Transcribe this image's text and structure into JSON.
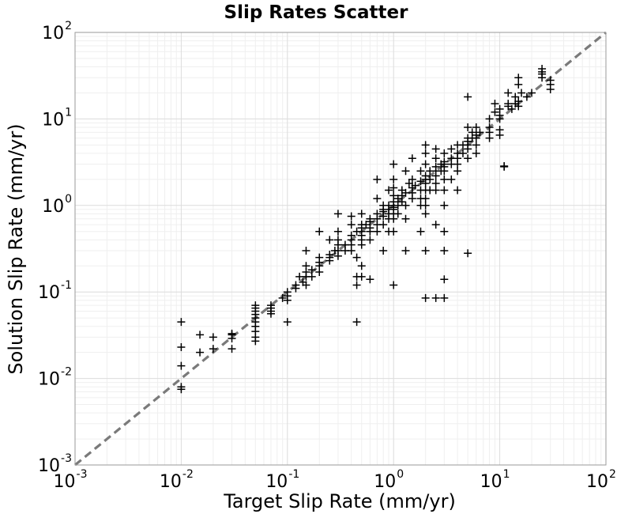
{
  "chart_data": {
    "type": "scatter",
    "title": "Slip Rates Scatter",
    "xlabel": "Target Slip Rate (mm/yr)",
    "ylabel": "Solution Slip Rate (mm/yr)",
    "xscale": "log",
    "yscale": "log",
    "xlim": [
      0.001,
      100
    ],
    "ylim": [
      0.001,
      100
    ],
    "x_ticks": [
      {
        "base": "10",
        "exp": "-3"
      },
      {
        "base": "10",
        "exp": "-2"
      },
      {
        "base": "10",
        "exp": "-1"
      },
      {
        "base": "10",
        "exp": "0"
      },
      {
        "base": "10",
        "exp": "1"
      },
      {
        "base": "10",
        "exp": "2"
      }
    ],
    "y_ticks": [
      {
        "base": "10",
        "exp": "-3"
      },
      {
        "base": "10",
        "exp": "-2"
      },
      {
        "base": "10",
        "exp": "-1"
      },
      {
        "base": "10",
        "exp": "0"
      },
      {
        "base": "10",
        "exp": "1"
      },
      {
        "base": "10",
        "exp": "2"
      }
    ],
    "grid": true,
    "marker": "+",
    "marker_color": "#000000",
    "reference_line": {
      "style": "dashed",
      "color": "#7a7a7a",
      "description": "y = x"
    },
    "series": [
      {
        "points": [
          [
            0.01,
            0.045
          ],
          [
            0.01,
            0.023
          ],
          [
            0.01,
            0.014
          ],
          [
            0.01,
            0.008
          ],
          [
            0.01,
            0.0075
          ],
          [
            0.015,
            0.032
          ],
          [
            0.015,
            0.02
          ],
          [
            0.02,
            0.022
          ],
          [
            0.02,
            0.03
          ],
          [
            0.03,
            0.033
          ],
          [
            0.03,
            0.029
          ],
          [
            0.03,
            0.022
          ],
          [
            0.03,
            0.032
          ],
          [
            0.05,
            0.07
          ],
          [
            0.05,
            0.06
          ],
          [
            0.05,
            0.055
          ],
          [
            0.05,
            0.05
          ],
          [
            0.05,
            0.045
          ],
          [
            0.05,
            0.04
          ],
          [
            0.05,
            0.035
          ],
          [
            0.05,
            0.03
          ],
          [
            0.05,
            0.027
          ],
          [
            0.05,
            0.065
          ],
          [
            0.07,
            0.07
          ],
          [
            0.07,
            0.065
          ],
          [
            0.07,
            0.06
          ],
          [
            0.07,
            0.056
          ],
          [
            0.1,
            0.1
          ],
          [
            0.1,
            0.09
          ],
          [
            0.1,
            0.08
          ],
          [
            0.1,
            0.045
          ],
          [
            0.09,
            0.085
          ],
          [
            0.12,
            0.12
          ],
          [
            0.12,
            0.11
          ],
          [
            0.13,
            0.15
          ],
          [
            0.14,
            0.13
          ],
          [
            0.15,
            0.17
          ],
          [
            0.15,
            0.15
          ],
          [
            0.15,
            0.12
          ],
          [
            0.15,
            0.2
          ],
          [
            0.17,
            0.18
          ],
          [
            0.17,
            0.15
          ],
          [
            0.2,
            0.22
          ],
          [
            0.2,
            0.2
          ],
          [
            0.2,
            0.17
          ],
          [
            0.2,
            0.25
          ],
          [
            0.2,
            0.5
          ],
          [
            0.15,
            0.3
          ],
          [
            0.25,
            0.4
          ],
          [
            0.3,
            0.5
          ],
          [
            0.25,
            0.27
          ],
          [
            0.25,
            0.25
          ],
          [
            0.25,
            0.23
          ],
          [
            0.28,
            0.3
          ],
          [
            0.3,
            0.35
          ],
          [
            0.3,
            0.3
          ],
          [
            0.3,
            0.26
          ],
          [
            0.3,
            0.4
          ],
          [
            0.3,
            0.8
          ],
          [
            0.35,
            0.35
          ],
          [
            0.35,
            0.3
          ],
          [
            0.4,
            0.45
          ],
          [
            0.4,
            0.4
          ],
          [
            0.4,
            0.35
          ],
          [
            0.4,
            0.3
          ],
          [
            0.4,
            0.6
          ],
          [
            0.4,
            0.75
          ],
          [
            0.45,
            0.5
          ],
          [
            0.45,
            0.25
          ],
          [
            0.45,
            0.12
          ],
          [
            0.45,
            0.15
          ],
          [
            0.45,
            0.045
          ],
          [
            0.5,
            0.6
          ],
          [
            0.5,
            0.55
          ],
          [
            0.5,
            0.5
          ],
          [
            0.5,
            0.45
          ],
          [
            0.5,
            0.4
          ],
          [
            0.5,
            0.35
          ],
          [
            0.5,
            0.8
          ],
          [
            0.5,
            0.2
          ],
          [
            0.5,
            0.15
          ],
          [
            0.55,
            0.6
          ],
          [
            0.6,
            0.7
          ],
          [
            0.6,
            0.65
          ],
          [
            0.6,
            0.55
          ],
          [
            0.6,
            0.5
          ],
          [
            0.6,
            0.4
          ],
          [
            0.6,
            0.14
          ],
          [
            0.7,
            0.8
          ],
          [
            0.7,
            0.7
          ],
          [
            0.7,
            0.6
          ],
          [
            0.7,
            0.5
          ],
          [
            0.7,
            1.2
          ],
          [
            0.7,
            2.0
          ],
          [
            0.8,
            0.9
          ],
          [
            0.8,
            0.85
          ],
          [
            0.8,
            0.75
          ],
          [
            0.8,
            0.6
          ],
          [
            0.8,
            1.0
          ],
          [
            0.8,
            0.3
          ],
          [
            0.9,
            1.0
          ],
          [
            0.9,
            0.9
          ],
          [
            0.9,
            0.8
          ],
          [
            0.9,
            0.7
          ],
          [
            0.9,
            0.5
          ],
          [
            0.9,
            1.5
          ],
          [
            1.0,
            1.1
          ],
          [
            1.0,
            1.0
          ],
          [
            1.0,
            0.95
          ],
          [
            1.0,
            0.9
          ],
          [
            1.0,
            0.8
          ],
          [
            1.0,
            0.7
          ],
          [
            1.0,
            1.3
          ],
          [
            1.0,
            1.6
          ],
          [
            1.0,
            2.0
          ],
          [
            1.0,
            3.0
          ],
          [
            1.0,
            0.12
          ],
          [
            1.0,
            0.5
          ],
          [
            1.1,
            1.2
          ],
          [
            1.1,
            1.0
          ],
          [
            1.1,
            0.8
          ],
          [
            1.2,
            1.3
          ],
          [
            1.2,
            1.1
          ],
          [
            1.2,
            1.5
          ],
          [
            1.3,
            1.4
          ],
          [
            1.3,
            1.0
          ],
          [
            1.3,
            0.7
          ],
          [
            1.3,
            0.3
          ],
          [
            1.3,
            2.5
          ],
          [
            1.4,
            1.8
          ],
          [
            1.5,
            1.6
          ],
          [
            1.5,
            1.4
          ],
          [
            1.5,
            1.2
          ],
          [
            1.5,
            2.0
          ],
          [
            1.5,
            3.5
          ],
          [
            1.6,
            1.7
          ],
          [
            1.8,
            1.9
          ],
          [
            1.8,
            1.5
          ],
          [
            1.8,
            1.2
          ],
          [
            1.8,
            0.5
          ],
          [
            1.8,
            2.5
          ],
          [
            1.8,
            1.0
          ],
          [
            2.0,
            2.2
          ],
          [
            2.0,
            2.0
          ],
          [
            2.0,
            1.8
          ],
          [
            2.0,
            1.5
          ],
          [
            2.0,
            1.2
          ],
          [
            2.0,
            1.0
          ],
          [
            2.0,
            0.8
          ],
          [
            2.0,
            3.0
          ],
          [
            2.0,
            4.0
          ],
          [
            2.0,
            5.0
          ],
          [
            2.0,
            0.085
          ],
          [
            2.0,
            0.3
          ],
          [
            2.2,
            2.5
          ],
          [
            2.2,
            2.0
          ],
          [
            2.2,
            1.5
          ],
          [
            2.5,
            2.8
          ],
          [
            2.5,
            2.5
          ],
          [
            2.5,
            2.2
          ],
          [
            2.5,
            1.8
          ],
          [
            2.5,
            1.5
          ],
          [
            2.5,
            3.5
          ],
          [
            2.5,
            0.085
          ],
          [
            2.5,
            0.6
          ],
          [
            2.5,
            4.5
          ],
          [
            2.8,
            3.0
          ],
          [
            2.8,
            2.5
          ],
          [
            3.0,
            3.2
          ],
          [
            3.0,
            3.0
          ],
          [
            3.0,
            2.8
          ],
          [
            3.0,
            2.5
          ],
          [
            3.0,
            2.0
          ],
          [
            3.0,
            1.5
          ],
          [
            3.0,
            1.0
          ],
          [
            3.0,
            4.0
          ],
          [
            3.0,
            0.085
          ],
          [
            3.0,
            0.14
          ],
          [
            3.0,
            0.3
          ],
          [
            3.0,
            0.5
          ],
          [
            3.5,
            3.5
          ],
          [
            3.5,
            3.0
          ],
          [
            3.5,
            4.5
          ],
          [
            3.5,
            2.0
          ],
          [
            4.0,
            4.0
          ],
          [
            4.0,
            3.5
          ],
          [
            4.0,
            3.0
          ],
          [
            4.0,
            5.0
          ],
          [
            4.0,
            2.5
          ],
          [
            4.0,
            1.5
          ],
          [
            4.5,
            5.0
          ],
          [
            4.5,
            4.0
          ],
          [
            5.0,
            5.5
          ],
          [
            5.0,
            5.0
          ],
          [
            5.0,
            4.5
          ],
          [
            5.0,
            6.0
          ],
          [
            5.0,
            3.5
          ],
          [
            5.0,
            8.0
          ],
          [
            5.0,
            0.28
          ],
          [
            5.0,
            18.0
          ],
          [
            5.5,
            6.0
          ],
          [
            5.5,
            7.0
          ],
          [
            6.0,
            6.5
          ],
          [
            6.0,
            6.0
          ],
          [
            6.0,
            5.0
          ],
          [
            6.0,
            8.0
          ],
          [
            6.0,
            4.0
          ],
          [
            6.5,
            7.0
          ],
          [
            8.0,
            8.0
          ],
          [
            8.0,
            7.0
          ],
          [
            8.0,
            10.0
          ],
          [
            8.0,
            6.0
          ],
          [
            9.0,
            12.0
          ],
          [
            9.0,
            15.0
          ],
          [
            10.0,
            10.0
          ],
          [
            10.0,
            7.5
          ],
          [
            10.0,
            6.5
          ],
          [
            10.0,
            11.0
          ],
          [
            10.0,
            13.0
          ],
          [
            11.0,
            2.8
          ],
          [
            11.0,
            2.85
          ],
          [
            12.0,
            14.0
          ],
          [
            12.0,
            15.0
          ],
          [
            12.0,
            20.0
          ],
          [
            13.0,
            13.0
          ],
          [
            14.0,
            15.0
          ],
          [
            14.0,
            18.0
          ],
          [
            15.0,
            14.0
          ],
          [
            15.0,
            16.0
          ],
          [
            15.0,
            25.0
          ],
          [
            15.0,
            30.0
          ],
          [
            16.0,
            20.0
          ],
          [
            18.0,
            18.0
          ],
          [
            20.0,
            20.0
          ],
          [
            25.0,
            35.0
          ],
          [
            25.0,
            33.0
          ],
          [
            25.0,
            30.0
          ],
          [
            25.0,
            38.0
          ],
          [
            30.0,
            28.0
          ],
          [
            30.0,
            25.0
          ],
          [
            30.0,
            22.0
          ]
        ]
      }
    ]
  }
}
